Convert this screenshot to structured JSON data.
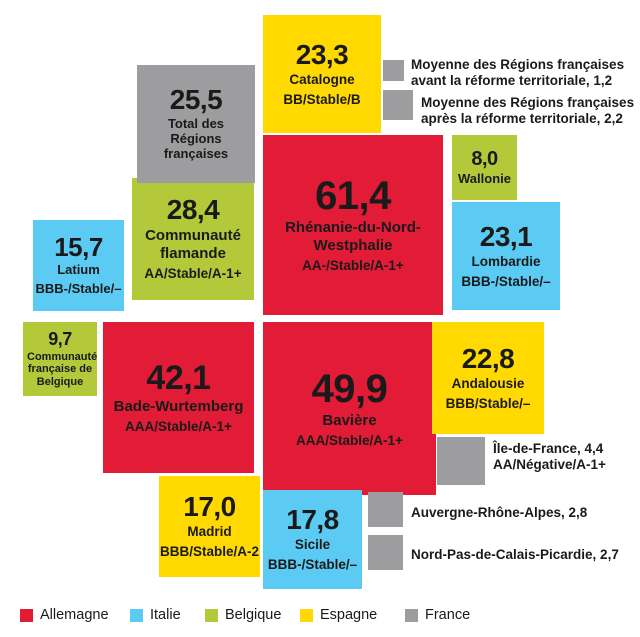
{
  "colors": {
    "Allemagne": "#e21b36",
    "Italie": "#5ccbf3",
    "Belgique": "#b3c93a",
    "Espagne": "#ffd900",
    "France": "#9d9d9f"
  },
  "chart_data": {
    "type": "treemap-squares",
    "items": [
      {
        "value": "61,4",
        "name": "Rhénanie-du-Nord-Westphalie",
        "rating": "AA-/Stable/A-1+",
        "country": "Allemagne"
      },
      {
        "value": "49,9",
        "name": "Bavière",
        "rating": "AAA/Stable/A-1+",
        "country": "Allemagne"
      },
      {
        "value": "42,1",
        "name": "Bade-Wurtemberg",
        "rating": "AAA/Stable/A-1+",
        "country": "Allemagne"
      },
      {
        "value": "28,4",
        "name": "Communauté flamande",
        "rating": "AA/Stable/A-1+",
        "country": "Belgique"
      },
      {
        "value": "25,5",
        "name": "Total des Régions françaises",
        "rating": "",
        "country": "France"
      },
      {
        "value": "23,3",
        "name": "Catalogne",
        "rating": "BB/Stable/B",
        "country": "Espagne"
      },
      {
        "value": "23,1",
        "name": "Lombardie",
        "rating": "BBB-/Stable/–",
        "country": "Italie"
      },
      {
        "value": "22,8",
        "name": "Andalousie",
        "rating": "BBB/Stable/–",
        "country": "Espagne"
      },
      {
        "value": "17,8",
        "name": "Sicile",
        "rating": "BBB-/Stable/–",
        "country": "Italie"
      },
      {
        "value": "17,0",
        "name": "Madrid",
        "rating": "BBB/Stable/A-2",
        "country": "Espagne"
      },
      {
        "value": "15,7",
        "name": "Latium",
        "rating": "BBB-/Stable/–",
        "country": "Italie"
      },
      {
        "value": "9,7",
        "name": "Communauté française de Belgique",
        "rating": "",
        "country": "Belgique"
      },
      {
        "value": "8,0",
        "name": "Wallonie",
        "rating": "",
        "country": "Belgique"
      },
      {
        "value": "4,4",
        "name": "Île-de-France",
        "rating": "AA/Négative/A-1+",
        "country": "France"
      },
      {
        "value": "2,8",
        "name": "Auvergne-Rhône-Alpes",
        "rating": "",
        "country": "France"
      },
      {
        "value": "2,7",
        "name": "Nord-Pas-de-Calais-Picardie",
        "rating": "",
        "country": "France"
      },
      {
        "value": "1,2",
        "name": "Moyenne des Régions françaises avant la réforme territoriale",
        "rating": "",
        "country": "France"
      },
      {
        "value": "2,2",
        "name": "Moyenne des Régions françaises après la réforme territoriale",
        "rating": "",
        "country": "France"
      }
    ],
    "legend": [
      "Allemagne",
      "Italie",
      "Belgique",
      "Espagne",
      "France"
    ]
  }
}
